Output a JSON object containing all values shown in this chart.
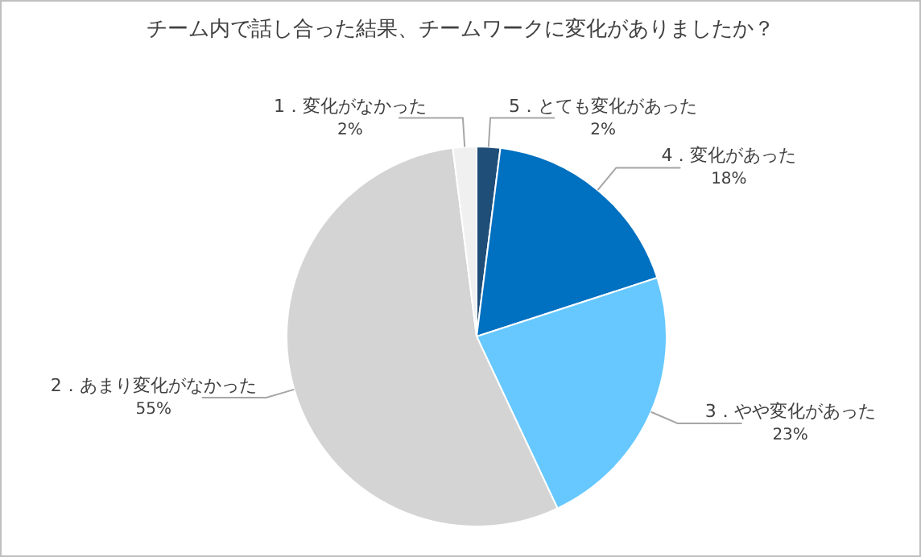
{
  "chart_data": {
    "type": "pie",
    "title": "チーム内で話し合った結果、チームワークに変化がありましたか？",
    "categories": [
      "5．とても変化があった",
      "4．変化があった",
      "3．やや変化があった",
      "2．あまり変化がなかった",
      "1．変化がなかった"
    ],
    "values": [
      2,
      18,
      23,
      55,
      2
    ],
    "value_labels": [
      "2%",
      "18%",
      "23%",
      "55%",
      "2%"
    ],
    "colors": [
      "#1f4e79",
      "#0070c0",
      "#66c8ff",
      "#d4d4d4",
      "#f0f0f0"
    ],
    "legend": false
  }
}
